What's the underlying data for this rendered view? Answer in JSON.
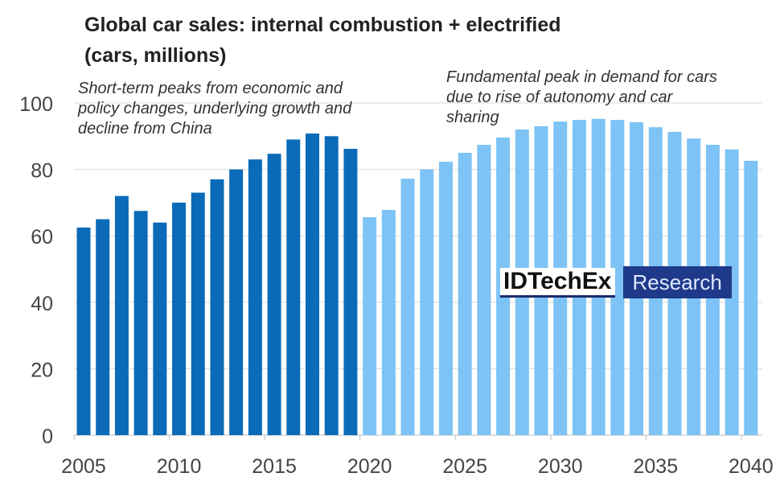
{
  "chart_data": {
    "type": "bar",
    "title": "Global car sales: internal combustion + electrified",
    "subtitle": "(cars, millions)",
    "x": [
      2005,
      2006,
      2007,
      2008,
      2009,
      2010,
      2011,
      2012,
      2013,
      2014,
      2015,
      2016,
      2017,
      2018,
      2019,
      2020,
      2021,
      2022,
      2023,
      2024,
      2025,
      2026,
      2027,
      2028,
      2029,
      2030,
      2031,
      2032,
      2033,
      2034,
      2035,
      2036,
      2037,
      2038,
      2039,
      2040
    ],
    "series": [
      {
        "values": [
          62.5,
          65,
          72,
          67.5,
          64,
          70,
          73,
          77,
          80,
          83,
          84.7,
          89,
          90.8,
          90,
          86.2,
          null,
          null,
          null,
          null,
          null,
          null,
          null,
          null,
          null,
          null,
          null,
          null,
          null,
          null,
          null,
          null,
          null,
          null,
          null,
          null,
          null
        ],
        "color": "#0b6bb8"
      },
      {
        "values": [
          null,
          null,
          null,
          null,
          null,
          null,
          null,
          null,
          null,
          null,
          null,
          null,
          null,
          null,
          null,
          65.6,
          67.8,
          77.2,
          80,
          82.3,
          85,
          87.4,
          89.6,
          92,
          93,
          94.4,
          94.9,
          95.2,
          94.9,
          94.2,
          92.7,
          91.3,
          89.3,
          87.4,
          86,
          82.6
        ],
        "color": "#7dc3f5"
      }
    ],
    "ylim": [
      0,
      100
    ],
    "yticks": [
      "0",
      "20",
      "40",
      "60",
      "80",
      "100"
    ],
    "xticks": [
      "2005",
      "2010",
      "2015",
      "2020",
      "2025",
      "2030",
      "2035",
      "2040"
    ],
    "grid": true,
    "annotations": {
      "left": [
        "Short-term peaks from economic and",
        "policy changes, underlying growth and",
        "decline from China"
      ],
      "right": [
        "Fundamental peak in demand for cars",
        "due to rise of autonomy and car",
        "sharing"
      ]
    }
  },
  "logo": {
    "name": "IDTechEx",
    "tag": "Research"
  }
}
